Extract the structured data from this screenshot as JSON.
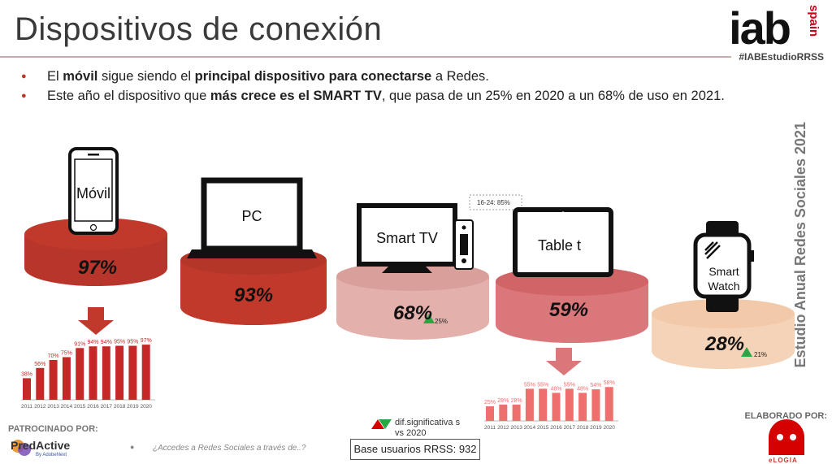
{
  "header": {
    "title": "Dispositivos de conexión",
    "logo": "iab",
    "logo_sub": "spain",
    "hashtag": "#IABEstudioRRSS"
  },
  "bullets": [
    {
      "parts": [
        "El ",
        "móvil",
        " sigue siendo el ",
        "principal dispositivo para conectarse",
        " a Redes."
      ]
    },
    {
      "parts": [
        "Este año el dispositivo que ",
        "más crece es el SMART TV",
        ", que pasa de un 25% en 2020 a un 68% de uso en 2021."
      ]
    }
  ],
  "side_title": "Estudio Anual Redes Sociales 2021",
  "devices": [
    {
      "key": "movil",
      "label": "Móvil",
      "pct": "97%",
      "color": "#c0392b"
    },
    {
      "key": "pc",
      "label": "PC",
      "pct": "93%",
      "color": "#c0392b"
    },
    {
      "key": "smarttv",
      "label": "Smart TV",
      "pct": "68%",
      "delta": "25%",
      "callout": "16-24: 85%",
      "color": "#e3b0ac"
    },
    {
      "key": "tablet",
      "label": "Table t",
      "pct": "59%",
      "color": "#d9777a"
    },
    {
      "key": "watch",
      "label": "Smart Watch",
      "pct": "28%",
      "delta": "21%",
      "color": "#f5d3b8"
    }
  ],
  "chart_data": [
    {
      "type": "bar",
      "title": "Móvil",
      "categories": [
        "2011",
        "2012",
        "2013",
        "2014",
        "2015",
        "2016",
        "2017",
        "2018",
        "2019",
        "2020"
      ],
      "values": [
        38,
        56,
        70,
        75,
        91,
        94,
        94,
        95,
        95,
        97
      ],
      "value_labels": [
        "38%",
        "56%",
        "70%",
        "75%",
        "91%",
        "94%",
        "94%",
        "95%",
        "95%",
        "97%"
      ],
      "ylim": [
        0,
        100
      ]
    },
    {
      "type": "bar",
      "title": "Tablet",
      "categories": [
        "2011",
        "2012",
        "2013",
        "2014",
        "2015",
        "2016",
        "2017",
        "2018",
        "2019",
        "2020"
      ],
      "values": [
        25,
        28,
        28,
        55,
        55,
        48,
        55,
        48,
        54,
        58
      ],
      "value_labels": [
        "25%",
        "28%",
        "28%",
        "55%",
        "55%",
        "48%",
        "55%",
        "48%",
        "54%",
        "58%"
      ],
      "ylim": [
        0,
        100
      ]
    }
  ],
  "footer": {
    "sponsor_label": "PATROCINADO POR:",
    "sponsor_name": "PredActive",
    "sponsor_sub": "By AdobeNext",
    "question": "¿Accedes a Redes Sociales a través de..?",
    "legend": "dif.significativa s vs 2020",
    "base": "Base usuarios RRSS: 932",
    "elaborado": "ELABORADO POR:",
    "elogia": "eLOGIA"
  },
  "colors": {
    "dark_red": "#c0392b",
    "bar_red": "#c62828",
    "bar_pink": "#ef6f6f",
    "green": "#27a844"
  }
}
